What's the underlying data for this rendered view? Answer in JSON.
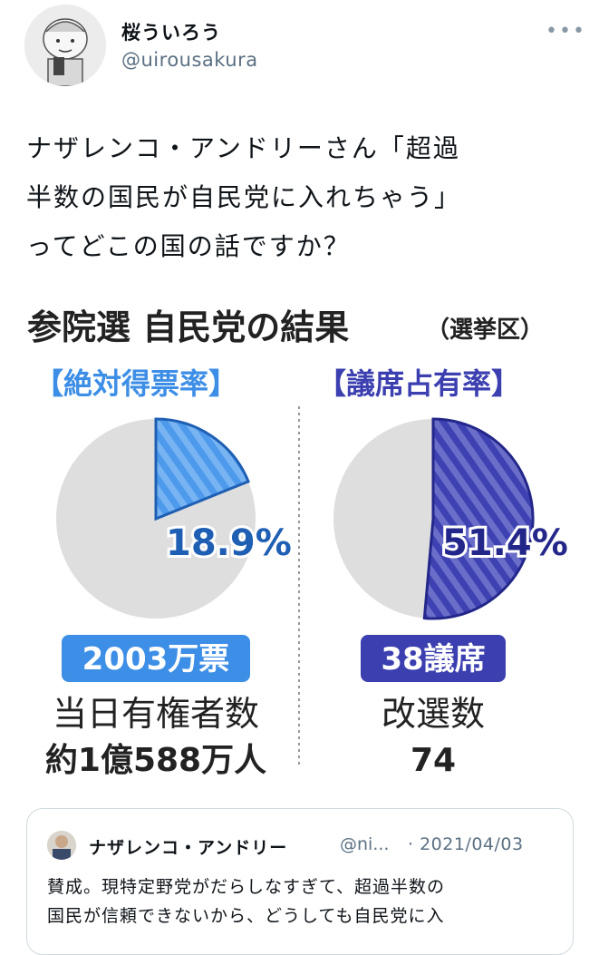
{
  "header": {
    "display_name": "桜ういろう",
    "handle": "@uirousakura",
    "more_label": "•••"
  },
  "tweet": {
    "text": "ナザレンコ・アンドリーさん「超過\n半数の国民が自民党に入れちゃう」\nってどこの国の話ですか？"
  },
  "infographic": {
    "title": "参院選  自民党の結果",
    "title_suffix": "（選挙区）",
    "left": {
      "heading": "【絶対得票率】",
      "percent": "18.9%",
      "share": 0.189,
      "badge": "2003万票",
      "caption": "当日有権者数",
      "value": "約1億588万人"
    },
    "right": {
      "heading": "【議席占有率】",
      "percent": "51.4%",
      "share": 0.514,
      "badge": "38議席",
      "caption": "改選数",
      "value": "74"
    },
    "colors": {
      "left_accent": "#3d8ee6",
      "left_dark": "#1e5fb4",
      "right_accent": "#3b3fb0",
      "right_dark": "#23278a",
      "pie_gray": "#dedede"
    }
  },
  "quote": {
    "name": "ナザレンコ・アンドリー",
    "handle": "@ni...",
    "date": "· 2021/04/03",
    "text": "賛成。現特定野党がだらしなすぎて、超過半数の\n国民が信頼できないから、どうしても自民党に入"
  }
}
